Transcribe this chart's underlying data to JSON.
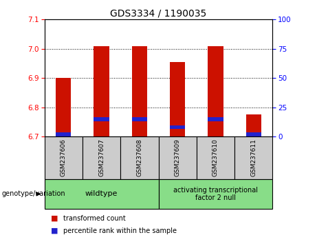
{
  "title": "GDS3334 / 1190035",
  "samples": [
    "GSM237606",
    "GSM237607",
    "GSM237608",
    "GSM237609",
    "GSM237610",
    "GSM237611"
  ],
  "transformed_counts": [
    6.9,
    7.01,
    7.01,
    6.955,
    7.01,
    6.775
  ],
  "percentile_ranks": [
    2,
    15,
    15,
    8,
    15,
    2
  ],
  "ylim_left": [
    6.7,
    7.1
  ],
  "ylim_right": [
    0,
    100
  ],
  "yticks_left": [
    6.7,
    6.8,
    6.9,
    7.0,
    7.1
  ],
  "yticks_right": [
    0,
    25,
    50,
    75,
    100
  ],
  "bar_color_red": "#cc1100",
  "bar_color_blue": "#2222cc",
  "wildtype_label": "wildtype",
  "mutant_label": "activating transcriptional\nfactor 2 null",
  "genotype_label": "genotype/variation",
  "legend_red": "transformed count",
  "legend_blue": "percentile rank within the sample",
  "green_color": "#88dd88",
  "gray_color": "#cccccc",
  "bar_width": 0.4,
  "baseline": 6.7
}
